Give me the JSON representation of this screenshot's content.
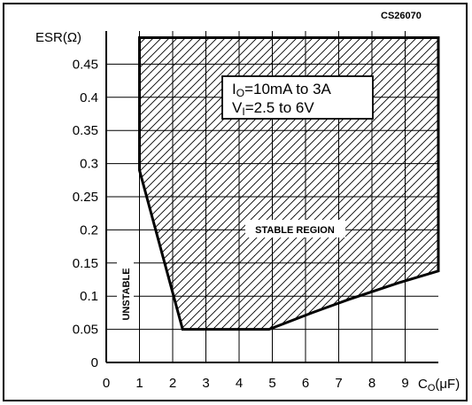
{
  "chart_data": {
    "type": "area",
    "figure_id": "CS26070",
    "y_axis_label": "ESR(Ω)",
    "x_axis_label_main": "C",
    "x_axis_label_sub": "O",
    "x_axis_label_unit": "(μF)",
    "xlim": [
      0,
      10
    ],
    "ylim": [
      0,
      0.5
    ],
    "x_ticks": [
      0,
      1,
      2,
      3,
      4,
      5,
      6,
      7,
      8,
      9
    ],
    "x_tick_labels": [
      "0",
      "1",
      "2",
      "3",
      "4",
      "5",
      "6",
      "7",
      "8",
      "9"
    ],
    "y_ticks": [
      0,
      0.05,
      0.1,
      0.15,
      0.2,
      0.25,
      0.3,
      0.35,
      0.4,
      0.45
    ],
    "y_tick_labels": [
      "0",
      "0.05",
      "0.1",
      "0.15",
      "0.2",
      "0.25",
      "0.3",
      "0.35",
      "0.4",
      "0.45"
    ],
    "grid": true,
    "stable_region_boundary": [
      {
        "x": 1.0,
        "y": 0.49
      },
      {
        "x": 10.0,
        "y": 0.49
      },
      {
        "x": 10.0,
        "y": 0.138
      },
      {
        "x": 8.8,
        "y": 0.12
      },
      {
        "x": 7.3,
        "y": 0.095
      },
      {
        "x": 6.2,
        "y": 0.075
      },
      {
        "x": 4.9,
        "y": 0.05
      },
      {
        "x": 2.3,
        "y": 0.05
      },
      {
        "x": 1.0,
        "y": 0.29
      }
    ],
    "region_labels": {
      "stable": "STABLE REGION",
      "unstable": "UNSTABLE"
    },
    "conditions": {
      "line1_main": "I",
      "line1_sub": "O",
      "line1_rest": "=10mA  to  3A",
      "line2_main": "V",
      "line2_sub": "I",
      "line2_rest": "=2.5  to  6V"
    }
  }
}
